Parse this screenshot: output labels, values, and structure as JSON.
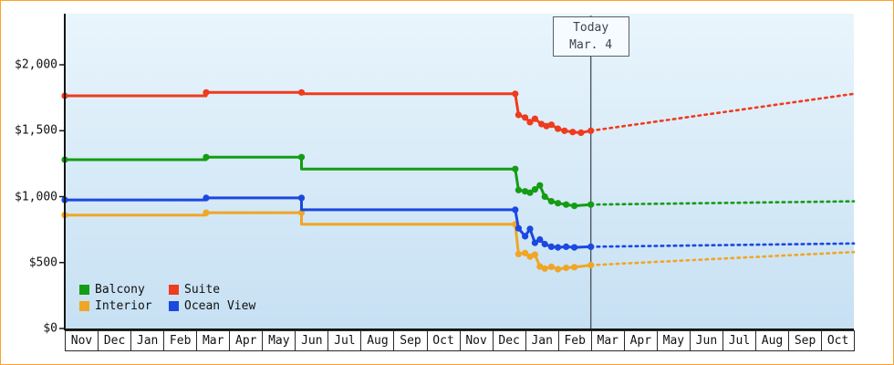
{
  "frame": {
    "border_color": "#ffa029",
    "background": "#ffffff"
  },
  "chart_data": {
    "type": "line",
    "title": "",
    "today_marker": {
      "line1": "Today",
      "line2": "Mar. 4",
      "month_index": 16
    },
    "x_axis": {
      "tick_labels": [
        "Nov",
        "Dec",
        "Jan",
        "Feb",
        "Mar",
        "Apr",
        "May",
        "Jun",
        "Jul",
        "Aug",
        "Sep",
        "Oct",
        "Nov",
        "Dec",
        "Jan",
        "Feb",
        "Mar",
        "Apr",
        "May",
        "Jun",
        "Jul",
        "Aug",
        "Sep",
        "Oct"
      ]
    },
    "y_axis": {
      "unit": "USD",
      "range": [
        0,
        2390
      ],
      "ticks": [
        {
          "value": 0,
          "label": "$0"
        },
        {
          "value": 500,
          "label": "$500"
        },
        {
          "value": 1000,
          "label": "$1,000"
        },
        {
          "value": 1500,
          "label": "$1,500"
        },
        {
          "value": 2000,
          "label": "$2,000"
        }
      ]
    },
    "x_range_months": [
      0,
      24
    ],
    "series": [
      {
        "name": "Interior",
        "color": "#f0a625",
        "history": [
          [
            0,
            860,
            1
          ],
          [
            4.3,
            860,
            0
          ],
          [
            4.3,
            878,
            1
          ],
          [
            7.2,
            878,
            1
          ],
          [
            7.2,
            790,
            0
          ],
          [
            13.7,
            790,
            1
          ],
          [
            13.8,
            565,
            1
          ],
          [
            14.0,
            572,
            1
          ],
          [
            14.15,
            545,
            1
          ],
          [
            14.3,
            560,
            1
          ],
          [
            14.45,
            470,
            1
          ],
          [
            14.6,
            455,
            1
          ],
          [
            14.8,
            468,
            1
          ],
          [
            15.0,
            450,
            1
          ],
          [
            15.25,
            460,
            1
          ],
          [
            15.5,
            465,
            1
          ],
          [
            16.0,
            480,
            1
          ]
        ],
        "forecast": [
          [
            16.0,
            480
          ],
          [
            24,
            580
          ]
        ]
      },
      {
        "name": "Ocean View",
        "color": "#1b48e0",
        "history": [
          [
            0,
            975,
            1
          ],
          [
            4.3,
            975,
            0
          ],
          [
            4.3,
            990,
            1
          ],
          [
            7.2,
            990,
            1
          ],
          [
            7.2,
            900,
            0
          ],
          [
            13.7,
            900,
            1
          ],
          [
            13.8,
            760,
            1
          ],
          [
            14.0,
            700,
            1
          ],
          [
            14.15,
            755,
            1
          ],
          [
            14.3,
            650,
            1
          ],
          [
            14.45,
            675,
            1
          ],
          [
            14.6,
            640,
            1
          ],
          [
            14.8,
            620,
            1
          ],
          [
            15.0,
            615,
            1
          ],
          [
            15.25,
            620,
            1
          ],
          [
            15.5,
            615,
            1
          ],
          [
            16.0,
            620,
            1
          ]
        ],
        "forecast": [
          [
            16.0,
            620
          ],
          [
            24,
            645
          ]
        ]
      },
      {
        "name": "Balcony",
        "color": "#149c14",
        "history": [
          [
            0,
            1280,
            1
          ],
          [
            4.3,
            1280,
            0
          ],
          [
            4.3,
            1300,
            1
          ],
          [
            7.2,
            1300,
            1
          ],
          [
            7.2,
            1210,
            0
          ],
          [
            13.7,
            1210,
            1
          ],
          [
            13.8,
            1050,
            1
          ],
          [
            14.0,
            1040,
            1
          ],
          [
            14.15,
            1030,
            1
          ],
          [
            14.3,
            1055,
            1
          ],
          [
            14.45,
            1085,
            1
          ],
          [
            14.6,
            1000,
            1
          ],
          [
            14.8,
            965,
            1
          ],
          [
            15.0,
            950,
            1
          ],
          [
            15.25,
            940,
            1
          ],
          [
            15.5,
            930,
            1
          ],
          [
            16.0,
            940,
            1
          ]
        ],
        "forecast": [
          [
            16.0,
            940
          ],
          [
            24,
            965
          ]
        ]
      },
      {
        "name": "Suite",
        "color": "#ef3b1e",
        "history": [
          [
            0,
            1765,
            1
          ],
          [
            4.3,
            1765,
            0
          ],
          [
            4.3,
            1790,
            1
          ],
          [
            7.2,
            1790,
            1
          ],
          [
            7.2,
            1780,
            0
          ],
          [
            13.7,
            1780,
            1
          ],
          [
            13.8,
            1620,
            1
          ],
          [
            14.0,
            1600,
            1
          ],
          [
            14.15,
            1565,
            1
          ],
          [
            14.3,
            1590,
            1
          ],
          [
            14.5,
            1550,
            1
          ],
          [
            14.65,
            1535,
            1
          ],
          [
            14.8,
            1545,
            1
          ],
          [
            15.0,
            1515,
            1
          ],
          [
            15.2,
            1500,
            1
          ],
          [
            15.45,
            1490,
            1
          ],
          [
            15.7,
            1485,
            1
          ],
          [
            16.0,
            1500,
            1
          ]
        ],
        "forecast": [
          [
            16.0,
            1500
          ],
          [
            24,
            1780
          ]
        ]
      }
    ],
    "legend": {
      "items": [
        {
          "label": "Balcony",
          "color": "#149c14"
        },
        {
          "label": "Suite",
          "color": "#ef3b1e"
        },
        {
          "label": "Interior",
          "color": "#f0a625"
        },
        {
          "label": "Ocean View",
          "color": "#1b48e0"
        }
      ]
    },
    "plot_background": {
      "top": "#e9f5fc",
      "bottom": "#c6e0f3"
    }
  }
}
